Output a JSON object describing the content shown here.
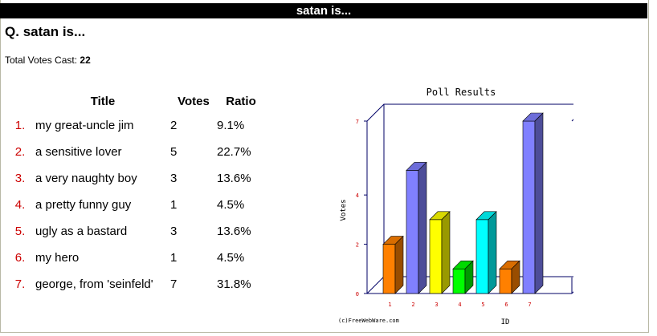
{
  "header": {
    "title": "satan is..."
  },
  "question": {
    "prefix": "Q.",
    "text": "satan is..."
  },
  "total": {
    "label": "Total Votes Cast:",
    "value": "22"
  },
  "table": {
    "columns": [
      "Title",
      "Votes",
      "Ratio"
    ],
    "rows": [
      {
        "num": "1.",
        "title": "my great-uncle jim",
        "votes": "2",
        "ratio": "9.1%"
      },
      {
        "num": "2.",
        "title": "a sensitive lover",
        "votes": "5",
        "ratio": "22.7%"
      },
      {
        "num": "3.",
        "title": "a very naughty boy",
        "votes": "3",
        "ratio": "13.6%"
      },
      {
        "num": "4.",
        "title": "a pretty funny guy",
        "votes": "1",
        "ratio": "4.5%"
      },
      {
        "num": "5.",
        "title": "ugly as a bastard",
        "votes": "3",
        "ratio": "13.6%"
      },
      {
        "num": "6.",
        "title": "my hero",
        "votes": "1",
        "ratio": "4.5%"
      },
      {
        "num": "7.",
        "title": "george, from 'seinfeld'",
        "votes": "7",
        "ratio": "31.8%"
      }
    ]
  },
  "chart_data": {
    "type": "bar",
    "title": "Poll Results",
    "xlabel": "ID",
    "ylabel": "Votes",
    "categories": [
      "1",
      "2",
      "3",
      "4",
      "5",
      "6",
      "7"
    ],
    "values": [
      2,
      5,
      3,
      1,
      3,
      1,
      7
    ],
    "yticks": [
      "0",
      "2",
      "4",
      "7"
    ],
    "ylim": [
      0,
      7
    ],
    "colors": [
      "#ff8000",
      "#8080ff",
      "#ffff00",
      "#00ff00",
      "#00ffff",
      "#ff8000",
      "#8080ff"
    ],
    "credit": "(c)FreeWebWare.com"
  }
}
